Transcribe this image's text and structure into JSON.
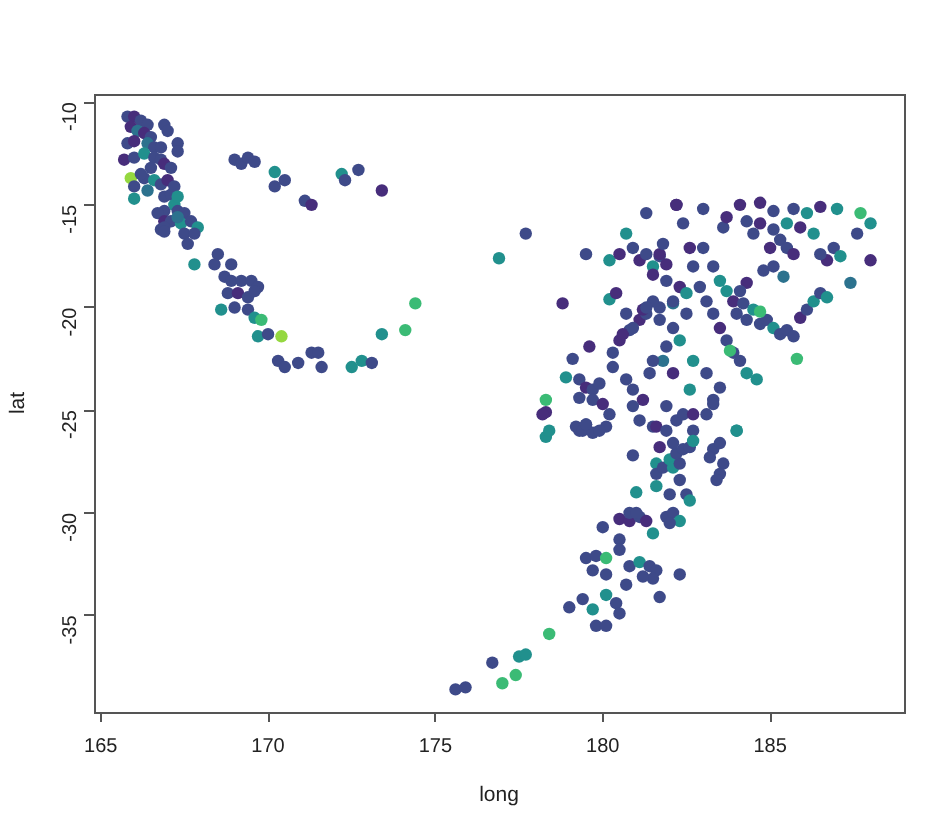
{
  "chart_data": {
    "type": "scatter",
    "xlabel": "long",
    "ylabel": "lat",
    "marker": "circle",
    "xlim": [
      164.8,
      189.0
    ],
    "ylim": [
      -39.7,
      -9.6
    ],
    "xticks": [
      165,
      170,
      175,
      180,
      185
    ],
    "yticks": [
      -35,
      -30,
      -25,
      -20,
      -15,
      -10
    ],
    "x": [
      165.8,
      166.0,
      166.2,
      166.4,
      165.9,
      166.1,
      166.3,
      166.5,
      165.8,
      166.0,
      166.4,
      166.6,
      166.8,
      166.9,
      167.0,
      167.3,
      167.3,
      165.7,
      166.0,
      166.3,
      166.6,
      166.8,
      166.9,
      167.1,
      166.5,
      165.9,
      166.3,
      166.6,
      166.8,
      167.0,
      166.0,
      166.0,
      166.4,
      166.9,
      167.1,
      167.2,
      166.9,
      167.3,
      167.5,
      166.7,
      166.9,
      166.8,
      167.1,
      167.4,
      167.7,
      167.9,
      167.5,
      167.8,
      167.6,
      168.5,
      168.4,
      167.8,
      168.9,
      168.7,
      168.9,
      169.2,
      169.5,
      169.7,
      168.8,
      169.1,
      169.4,
      169.6,
      168.6,
      169.0,
      169.4,
      169.6,
      169.8,
      169.7,
      170.0,
      170.4,
      170.3,
      170.5,
      170.9,
      171.3,
      171.5,
      171.6,
      172.5,
      172.8,
      173.1,
      173.4,
      170.2,
      170.5,
      170.2,
      171.1,
      171.3,
      169.0,
      169.2,
      169.4,
      169.6,
      172.2,
      172.3,
      172.7,
      173.4,
      166.2,
      167.2,
      167.3,
      166.9,
      166.9,
      167.3,
      177.7,
      176.9,
      174.4,
      174.1,
      178.8,
      179.5,
      180.7,
      181.3,
      182.2,
      178.3,
      178.3,
      179.1,
      178.9,
      179.3,
      179.5,
      179.7,
      179.9,
      179.3,
      179.7,
      180.0,
      180.2,
      179.5,
      179.3,
      180.1,
      179.6,
      180.2,
      180.3,
      180.5,
      180.8,
      181.1,
      181.3,
      181.7,
      182.1,
      180.2,
      180.5,
      180.9,
      181.1,
      181.3,
      181.5,
      181.7,
      181.9,
      180.4,
      180.7,
      180.7,
      180.9,
      181.2,
      181.4,
      181.8,
      182.1,
      181.9,
      182.2,
      181.5,
      180.6,
      180.9,
      181.2,
      181.5,
      180.3,
      182.2,
      183.0,
      184.1,
      184.7,
      185.1,
      185.7,
      186.1,
      186.5,
      187.0,
      187.7,
      188.0,
      187.6,
      188.0,
      187.4,
      186.9,
      187.1,
      186.7,
      186.5,
      186.3,
      185.9,
      185.5,
      185.1,
      184.7,
      184.3,
      184.5,
      185.0,
      185.3,
      185.5,
      185.7,
      184.8,
      185.1,
      185.4,
      184.3,
      184.1,
      183.9,
      184.2,
      184.0,
      184.3,
      184.5,
      184.7,
      184.9,
      185.1,
      185.3,
      185.5,
      185.7,
      185.9,
      186.1,
      186.3,
      186.5,
      186.7,
      185.8,
      184.7,
      183.7,
      183.1,
      183.3,
      183.5,
      183.7,
      183.9,
      184.1,
      184.3,
      184.6,
      182.5,
      182.1,
      182.3,
      181.9,
      181.5,
      182.7,
      183.1,
      183.5,
      182.6,
      182.4,
      182.7,
      183.3,
      184.0,
      181.5,
      181.9,
      182.3,
      182.7,
      182.9,
      183.0,
      183.3,
      183.5,
      181.3,
      181.7,
      182.1,
      182.5,
      183.8,
      182.4,
      183.6,
      183.7,
      182.6,
      181.7,
      181.8,
      175.6,
      175.9,
      176.7,
      177.0,
      177.4,
      177.5,
      177.7,
      178.4,
      179.0,
      179.4,
      179.7,
      179.8,
      180.1,
      180.1,
      180.4,
      180.5,
      179.5,
      179.8,
      180.1,
      179.7,
      180.1,
      180.7,
      180.8,
      181.1,
      181.4,
      181.6,
      181.5,
      181.2,
      182.3,
      181.7,
      180.0,
      180.5,
      180.8,
      181.1,
      181.3,
      180.8,
      180.5,
      180.5,
      181.5,
      181.9,
      182.1,
      182.3,
      182.0,
      181.0,
      181.6,
      182.0,
      182.5,
      182.6,
      182.3,
      180.9,
      181.6,
      181.6,
      181.8,
      182.0,
      182.1,
      182.3,
      182.2,
      182.4,
      182.6,
      182.7,
      183.3,
      183.5,
      183.6,
      183.5,
      183.4,
      183.2,
      184.0,
      178.2,
      179.2,
      179.4,
      179.7,
      179.9,
      179.5,
      178.3,
      178.4,
      180.9,
      181.1,
      181.6,
      181.9,
      182.7,
      183.1,
      183.3,
      182.1,
      181.7,
      181.0
    ],
    "values": [
      -10.7,
      -10.7,
      -10.9,
      -11.1,
      -11.2,
      -11.4,
      -11.5,
      -11.7,
      -12.0,
      -11.9,
      -12.0,
      -12.2,
      -12.2,
      -11.1,
      -11.4,
      -12.0,
      -12.4,
      -12.8,
      -12.7,
      -12.5,
      -12.7,
      -12.8,
      -13.0,
      -13.2,
      -13.2,
      -13.7,
      -13.7,
      -13.8,
      -14.0,
      -13.8,
      -14.1,
      -14.7,
      -14.3,
      -14.6,
      -14.5,
      -15.0,
      -15.3,
      -15.3,
      -15.4,
      -15.4,
      -15.8,
      -16.2,
      -15.8,
      -15.9,
      -15.8,
      -16.1,
      -16.4,
      -16.4,
      -16.9,
      -17.4,
      -17.9,
      -17.9,
      -17.9,
      -18.5,
      -18.7,
      -18.7,
      -18.7,
      -19.0,
      -19.3,
      -19.3,
      -19.5,
      -19.2,
      -20.1,
      -20.0,
      -20.1,
      -20.5,
      -20.6,
      -21.4,
      -21.3,
      -21.4,
      -22.6,
      -22.9,
      -22.7,
      -22.2,
      -22.2,
      -22.9,
      -22.9,
      -22.6,
      -22.7,
      -21.3,
      -13.4,
      -13.8,
      -14.1,
      -14.8,
      -15.0,
      -12.8,
      -13.0,
      -12.7,
      -12.9,
      -13.5,
      -13.8,
      -13.3,
      -14.3,
      -13.5,
      -14.1,
      -14.6,
      -16.1,
      -16.3,
      -15.6,
      -16.4,
      -17.6,
      -19.8,
      -21.1,
      -19.8,
      -17.4,
      -16.4,
      -15.4,
      -15.0,
      -24.5,
      -25.1,
      -22.5,
      -23.4,
      -23.5,
      -23.9,
      -24.0,
      -23.7,
      -24.4,
      -24.5,
      -24.7,
      -25.2,
      -25.7,
      -26.0,
      -25.8,
      -21.9,
      -19.6,
      -22.2,
      -21.6,
      -21.1,
      -20.6,
      -20.3,
      -20.0,
      -19.8,
      -17.7,
      -17.4,
      -17.1,
      -17.7,
      -17.4,
      -18.0,
      -17.5,
      -17.9,
      -19.3,
      -20.3,
      -23.5,
      -24.0,
      -24.5,
      -23.2,
      -22.6,
      -23.2,
      -24.8,
      -25.5,
      -25.8,
      -21.3,
      -21.0,
      -20.1,
      -19.7,
      -22.9,
      -15.0,
      -15.2,
      -15.0,
      -14.9,
      -15.3,
      -15.2,
      -15.4,
      -15.1,
      -15.2,
      -15.4,
      -15.9,
      -16.4,
      -17.7,
      -18.8,
      -17.1,
      -17.5,
      -17.7,
      -17.4,
      -16.4,
      -16.1,
      -15.9,
      -16.2,
      -15.9,
      -15.8,
      -16.4,
      -17.1,
      -16.7,
      -17.1,
      -17.4,
      -18.2,
      -18.0,
      -18.5,
      -18.8,
      -19.2,
      -19.7,
      -19.8,
      -20.3,
      -20.6,
      -20.1,
      -20.8,
      -20.6,
      -21.0,
      -21.3,
      -21.1,
      -21.4,
      -20.5,
      -20.1,
      -19.7,
      -19.3,
      -19.5,
      -22.5,
      -20.2,
      -19.2,
      -19.7,
      -20.3,
      -21.0,
      -21.6,
      -22.2,
      -22.6,
      -23.2,
      -23.5,
      -20.3,
      -21.0,
      -21.6,
      -21.9,
      -22.6,
      -22.6,
      -23.2,
      -23.9,
      -24.0,
      -25.2,
      -26.0,
      -24.5,
      -26.0,
      -18.4,
      -18.7,
      -19.0,
      -18.0,
      -19.0,
      -17.1,
      -18.0,
      -18.7,
      -20.0,
      -20.6,
      -19.7,
      -19.3,
      -22.1,
      -15.9,
      -16.1,
      -15.6,
      -17.1,
      -17.4,
      -16.9,
      -38.6,
      -38.5,
      -37.3,
      -38.3,
      -37.9,
      -37.0,
      -36.9,
      -35.9,
      -34.6,
      -34.2,
      -34.7,
      -35.5,
      -35.5,
      -34.0,
      -34.4,
      -34.9,
      -32.2,
      -32.1,
      -32.2,
      -32.8,
      -33.0,
      -33.5,
      -32.6,
      -32.4,
      -32.6,
      -32.8,
      -33.2,
      -33.1,
      -33.0,
      -34.1,
      -30.7,
      -30.3,
      -30.4,
      -30.2,
      -30.4,
      -30.0,
      -31.3,
      -31.8,
      -31.0,
      -30.2,
      -30.0,
      -30.4,
      -30.5,
      -29.0,
      -28.7,
      -29.1,
      -29.1,
      -29.4,
      -28.4,
      -27.2,
      -27.6,
      -28.1,
      -27.8,
      -27.4,
      -27.8,
      -27.6,
      -27.1,
      -26.9,
      -26.8,
      -26.5,
      -26.9,
      -26.6,
      -27.6,
      -28.1,
      -28.4,
      -27.3,
      -26.0,
      -25.2,
      -25.8,
      -26.0,
      -26.1,
      -26.0,
      -25.7,
      -26.3,
      -26.0,
      -24.8,
      -25.5,
      -25.8,
      -26.0,
      -25.2,
      -25.2,
      -24.7,
      -26.6,
      -26.8,
      -30.0
    ],
    "colors": [
      "#3e4a89",
      "#472d7b",
      "#3e4a89",
      "#3e4a89",
      "#472d7b",
      "#2c728e",
      "#472d7b",
      "#3e4a89",
      "#3e4a89",
      "#472d7b",
      "#2c728e",
      "#3e4a89",
      "#3e4a89",
      "#3e4a89",
      "#3e4a89",
      "#3e4a89",
      "#3e4a89",
      "#472d7b",
      "#3e4a89",
      "#21908d",
      "#3e4a89",
      "#3e4a89",
      "#472d7b",
      "#3e4a89",
      "#3e4a89",
      "#95d840",
      "#3e4a89",
      "#21908d",
      "#3e4a89",
      "#472d7b",
      "#3e4a89",
      "#21908d",
      "#2c728e",
      "#3e4a89",
      "#3e4a89",
      "#21908d",
      "#3e4a89",
      "#3e4a89",
      "#3e4a89",
      "#3e4a89",
      "#472d7b",
      "#3e4a89",
      "#3e4a89",
      "#21908d",
      "#3e4a89",
      "#21908d",
      "#3e4a89",
      "#3e4a89",
      "#3e4a89",
      "#3e4a89",
      "#3e4a89",
      "#21908d",
      "#3e4a89",
      "#3e4a89",
      "#3e4a89",
      "#3e4a89",
      "#3e4a89",
      "#3e4a89",
      "#3e4a89",
      "#472d7b",
      "#3e4a89",
      "#3e4a89",
      "#21908d",
      "#3e4a89",
      "#3e4a89",
      "#21908d",
      "#3bbb75",
      "#21908d",
      "#3e4a89",
      "#95d840",
      "#3e4a89",
      "#3e4a89",
      "#3e4a89",
      "#3e4a89",
      "#3e4a89",
      "#3e4a89",
      "#21908d",
      "#21908d",
      "#3e4a89",
      "#21908d",
      "#21908d",
      "#3e4a89",
      "#3e4a89",
      "#3e4a89",
      "#472d7b",
      "#3e4a89",
      "#3e4a89",
      "#3e4a89",
      "#3e4a89",
      "#21908d",
      "#3e4a89",
      "#3e4a89",
      "#472d7b",
      "#3e4a89",
      "#3e4a89",
      "#21908d",
      "#3e4a89",
      "#3e4a89",
      "#2c728e",
      "#3e4a89",
      "#21908d",
      "#3bbb75",
      "#3bbb75",
      "#472d7b",
      "#3e4a89",
      "#21908d",
      "#3e4a89",
      "#472d7b",
      "#3bbb75",
      "#472d7b",
      "#3e4a89",
      "#21908d",
      "#3e4a89",
      "#472d7b",
      "#3e4a89",
      "#3e4a89",
      "#3e4a89",
      "#3e4a89",
      "#472d7b",
      "#3e4a89",
      "#3e4a89",
      "#3e4a89",
      "#3e4a89",
      "#472d7b",
      "#21908d",
      "#3e4a89",
      "#472d7b",
      "#3e4a89",
      "#472d7b",
      "#3e4a89",
      "#3e4a89",
      "#2c728e",
      "#21908d",
      "#472d7b",
      "#3e4a89",
      "#472d7b",
      "#3e4a89",
      "#21908d",
      "#3e4a89",
      "#472d7b",
      "#472d7b",
      "#3e4a89",
      "#3e4a89",
      "#3e4a89",
      "#472d7b",
      "#3e4a89",
      "#2c728e",
      "#472d7b",
      "#3e4a89",
      "#3e4a89",
      "#3e4a89",
      "#472d7b",
      "#3e4a89",
      "#472d7b",
      "#3e4a89",
      "#3e4a89",
      "#472d7b",
      "#3e4a89",
      "#472d7b",
      "#472d7b",
      "#3e4a89",
      "#3e4a89",
      "#21908d",
      "#472d7b",
      "#21908d",
      "#3bbb75",
      "#21908d",
      "#3e4a89",
      "#472d7b",
      "#2c728e",
      "#3e4a89",
      "#21908d",
      "#472d7b",
      "#3e4a89",
      "#21908d",
      "#472d7b",
      "#21908d",
      "#3e4a89",
      "#472d7b",
      "#3e4a89",
      "#3e4a89",
      "#472d7b",
      "#3e4a89",
      "#3e4a89",
      "#472d7b",
      "#3e4a89",
      "#3e4a89",
      "#2c728e",
      "#472d7b",
      "#3e4a89",
      "#472d7b",
      "#3e4a89",
      "#3e4a89",
      "#3e4a89",
      "#21908d",
      "#3e4a89",
      "#3e4a89",
      "#21908d",
      "#3e4a89",
      "#3e4a89",
      "#3e4a89",
      "#472d7b",
      "#3e4a89",
      "#21908d",
      "#3e4a89",
      "#21908d",
      "#3bbb75",
      "#3bbb75",
      "#21908d",
      "#3e4a89",
      "#3e4a89",
      "#472d7b",
      "#3e4a89",
      "#3e4a89",
      "#3e4a89",
      "#21908d",
      "#21908d",
      "#3e4a89",
      "#3e4a89",
      "#21908d",
      "#3e4a89",
      "#3e4a89",
      "#21908d",
      "#3e4a89",
      "#3e4a89",
      "#21908d",
      "#3e4a89",
      "#3e4a89",
      "#3e4a89",
      "#21908d",
      "#472d7b",
      "#3e4a89",
      "#472d7b",
      "#3e4a89",
      "#3e4a89",
      "#3e4a89",
      "#3e4a89",
      "#21908d",
      "#3e4a89",
      "#3e4a89",
      "#3e4a89",
      "#21908d",
      "#3bbb75",
      "#3e4a89",
      "#3e4a89",
      "#472d7b",
      "#472d7b",
      "#472d7b",
      "#3e4a89",
      "#3e4a89",
      "#3e4a89",
      "#3e4a89",
      "#3bbb75",
      "#3bbb75",
      "#21908d",
      "#21908d",
      "#3bbb75",
      "#3e4a89",
      "#3e4a89",
      "#21908d",
      "#3e4a89",
      "#3e4a89",
      "#21908d",
      "#3e4a89",
      "#3e4a89",
      "#3e4a89",
      "#3e4a89",
      "#3bbb75",
      "#3e4a89",
      "#3e4a89",
      "#3e4a89",
      "#3e4a89",
      "#21908d",
      "#3e4a89",
      "#3e4a89",
      "#3e4a89",
      "#3e4a89",
      "#3e4a89",
      "#3e4a89",
      "#3e4a89",
      "#472d7b",
      "#472d7b",
      "#3e4a89",
      "#472d7b",
      "#3e4a89",
      "#3e4a89",
      "#3e4a89",
      "#21908d",
      "#3e4a89",
      "#3e4a89",
      "#21908d",
      "#3e4a89",
      "#21908d",
      "#21908d",
      "#3e4a89",
      "#3e4a89",
      "#21908d",
      "#3e4a89",
      "#3e4a89",
      "#21908d",
      "#3e4a89",
      "#3e4a89",
      "#21908d",
      "#21908d",
      "#3e4a89",
      "#3e4a89",
      "#3e4a89",
      "#3e4a89",
      "#21908d",
      "#3e4a89",
      "#3e4a89",
      "#3e4a89",
      "#3e4a89",
      "#3e4a89",
      "#3e4a89",
      "#21908d",
      "#472d7b",
      "#3e4a89",
      "#3e4a89",
      "#3e4a89",
      "#3e4a89",
      "#3e4a89",
      "#21908d",
      "#21908d",
      "#3e4a89",
      "#3e4a89",
      "#472d7b",
      "#3e4a89",
      "#472d7b",
      "#3e4a89",
      "#3e4a89",
      "#3e4a89",
      "#472d7b",
      "#3e4a89"
    ]
  }
}
